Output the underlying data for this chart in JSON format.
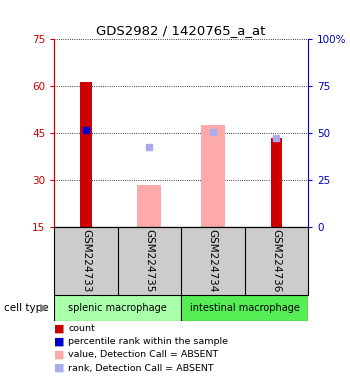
{
  "title": "GDS2982 / 1420765_a_at",
  "samples": [
    "GSM224733",
    "GSM224735",
    "GSM224734",
    "GSM224736"
  ],
  "groups": [
    {
      "name": "splenic macrophage",
      "samples": [
        0,
        1
      ],
      "color": "#aaffaa"
    },
    {
      "name": "intestinal macrophage",
      "samples": [
        2,
        3
      ],
      "color": "#55ee55"
    }
  ],
  "left_yticks": [
    15,
    30,
    45,
    60,
    75
  ],
  "right_yticks": [
    0,
    25,
    50,
    75,
    100
  ],
  "left_ylim": [
    15,
    75
  ],
  "right_ylim": [
    0,
    100
  ],
  "bars_red": {
    "0": 61.5,
    "3": 43.5
  },
  "bars_pink": {
    "1": 28.5,
    "2": 47.5
  },
  "dots_blue": {
    "0": 46.0
  },
  "dots_lightblue": {
    "1": 40.5,
    "2": 45.5,
    "3": 43.5
  },
  "red_color": "#cc0000",
  "pink_color": "#ffaaaa",
  "blue_color": "#0000cc",
  "lightblue_color": "#aaaaee",
  "left_axis_color": "#cc0000",
  "right_axis_color": "#0000bb",
  "group_label": "cell type",
  "legend": [
    {
      "label": "count",
      "color": "#cc0000"
    },
    {
      "label": "percentile rank within the sample",
      "color": "#0000cc"
    },
    {
      "label": "value, Detection Call = ABSENT",
      "color": "#ffaaaa"
    },
    {
      "label": "rank, Detection Call = ABSENT",
      "color": "#aaaaee"
    }
  ]
}
